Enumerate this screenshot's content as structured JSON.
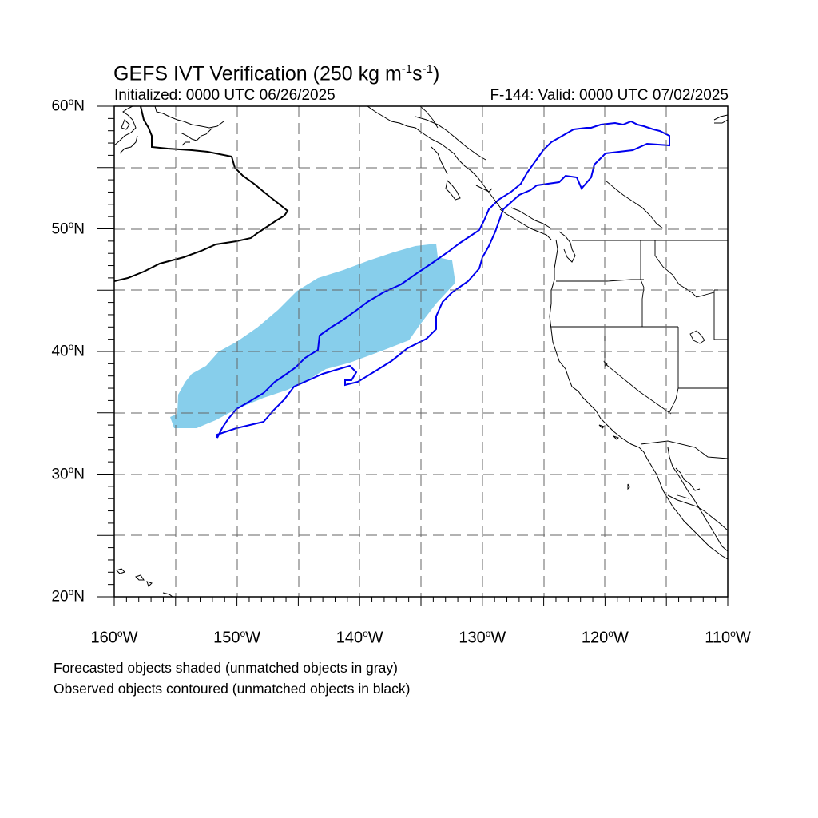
{
  "title": {
    "text": "GEFS IVT Verification (250 kg m",
    "exp1": "-1",
    "mid": "s",
    "exp2": "-1",
    "close": ")"
  },
  "subtitle_left": "Initialized: 0000 UTC 06/26/2025",
  "subtitle_right": "F-144: Valid: 0000 UTC 07/02/2025",
  "degree_symbol": "o",
  "lat_labels": [
    {
      "num": "60",
      "hemi": "N",
      "value": 60
    },
    {
      "num": "50",
      "hemi": "N",
      "value": 50
    },
    {
      "num": "40",
      "hemi": "N",
      "value": 40
    },
    {
      "num": "30",
      "hemi": "N",
      "value": 30
    },
    {
      "num": "20",
      "hemi": "N",
      "value": 20
    }
  ],
  "lon_labels": [
    {
      "num": "160",
      "hemi": "W",
      "value": -160
    },
    {
      "num": "150",
      "hemi": "W",
      "value": -150
    },
    {
      "num": "140",
      "hemi": "W",
      "value": -140
    },
    {
      "num": "130",
      "hemi": "W",
      "value": -130
    },
    {
      "num": "120",
      "hemi": "W",
      "value": -120
    },
    {
      "num": "110",
      "hemi": "W",
      "value": -110
    }
  ],
  "notes": [
    "Forecasted objects shaded (unmatched objects in gray)",
    "Observed objects contoured (unmatched objects in black)"
  ],
  "map": {
    "lon_range": [
      -160,
      -110
    ],
    "lat_range": [
      20,
      60
    ],
    "gridline_lon_step": 5,
    "gridline_lat_step": 5,
    "colors": {
      "forecast_matched_fill": "#87ceeb",
      "observed_matched_contour": "#0000ee",
      "observed_unmatched_contour": "#000000",
      "coastline": "#000000",
      "gridline": "#666666"
    }
  }
}
